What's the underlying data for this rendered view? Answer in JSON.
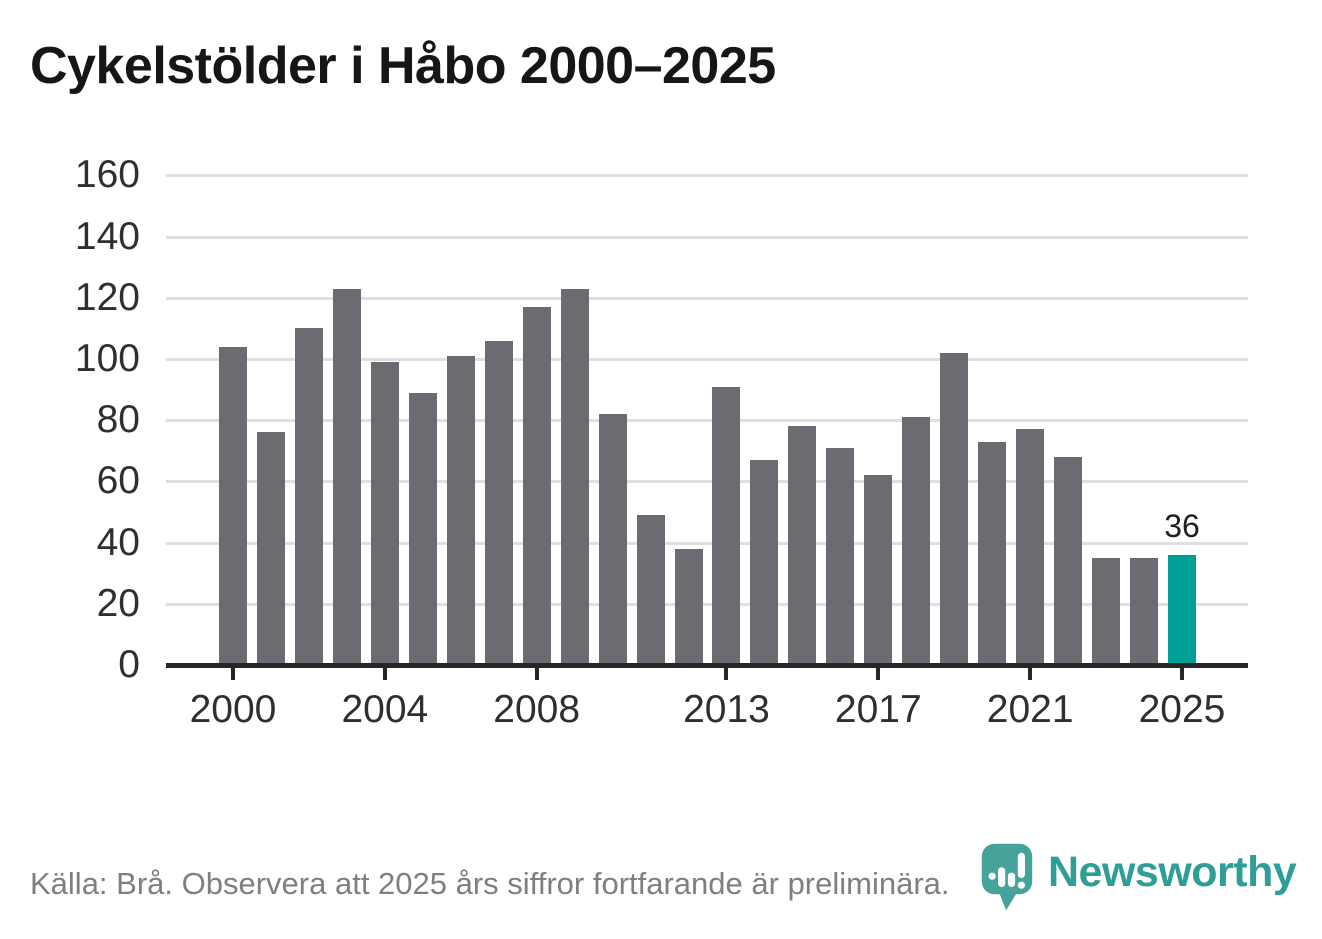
{
  "title": "Cykelstölder i Håbo 2000–2025",
  "footer": {
    "source_text": "Källa: Brå. Observera att 2025 års siffror fortfarande är preliminära.",
    "logo_text": "Newsworthy"
  },
  "colors": {
    "bar": "#6c6b72",
    "accent_bar": "#00a096",
    "gridline": "#dfdfdf",
    "axis": "#262626",
    "tick_text": "#2f2f2f",
    "title_text": "#161616",
    "footer_text": "#7f7f7f",
    "logo_icon": "#45a39b",
    "logo_text_color": "#2f9e96"
  },
  "chart_data": {
    "type": "bar",
    "title": "Cykelstölder i Håbo 2000–2025",
    "x": [
      2000,
      2001,
      2002,
      2003,
      2004,
      2005,
      2006,
      2007,
      2008,
      2009,
      2010,
      2011,
      2012,
      2013,
      2014,
      2015,
      2016,
      2017,
      2018,
      2019,
      2020,
      2021,
      2022,
      2023,
      2024,
      2025
    ],
    "values": [
      104,
      76,
      110,
      123,
      99,
      89,
      101,
      106,
      117,
      123,
      82,
      49,
      38,
      91,
      67,
      78,
      71,
      62,
      81,
      102,
      73,
      77,
      68,
      35,
      35,
      36
    ],
    "highlight_year": 2025,
    "highlight_value_label": "36",
    "xlabel": "",
    "ylabel": "",
    "ylim": [
      0,
      160
    ],
    "yticks": [
      0,
      20,
      40,
      60,
      80,
      100,
      120,
      140,
      160
    ],
    "xticks": [
      2000,
      2004,
      2008,
      2013,
      2017,
      2021,
      2025
    ],
    "grid": "horizontal",
    "legend": "none"
  }
}
